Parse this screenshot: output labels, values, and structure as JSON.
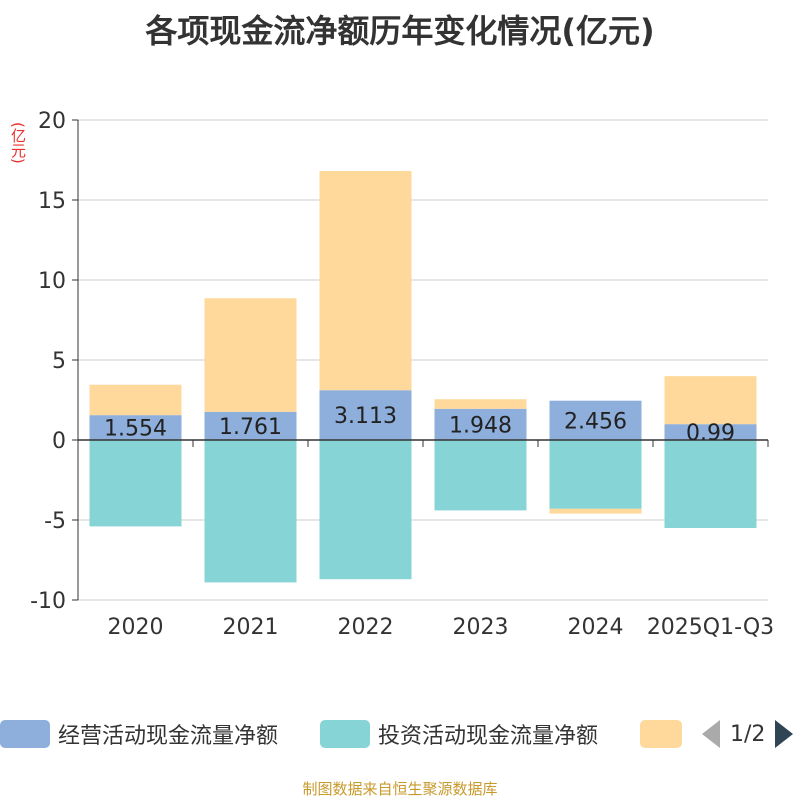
{
  "chart_data": {
    "type": "bar",
    "stacked": true,
    "title": "各项现金流净额历年变化情况(亿元)",
    "ylabel": "(亿元)",
    "xlabel": "",
    "ylim": [
      -10,
      20
    ],
    "yticks": [
      -10,
      -5,
      0,
      5,
      10,
      15,
      20
    ],
    "grid": true,
    "categories": [
      "2020",
      "2021",
      "2022",
      "2023",
      "2024",
      "2025Q1-Q3"
    ],
    "series": [
      {
        "name": "经营活动现金流量净额",
        "color": "#8eaedb",
        "values": [
          1.554,
          1.761,
          3.113,
          1.948,
          2.456,
          0.99
        ],
        "labels": [
          "1.554",
          "1.761",
          "3.113",
          "1.948",
          "2.456",
          "0.99"
        ]
      },
      {
        "name": "投资活动现金流量净额",
        "color": "#86d4d5",
        "values": [
          -5.4,
          -8.9,
          -8.7,
          -4.4,
          -4.3,
          -5.5
        ]
      },
      {
        "name": "",
        "color": "#fed99b",
        "values": [
          1.9,
          7.1,
          13.7,
          0.6,
          -0.3,
          3.0
        ]
      }
    ],
    "legend_position": "bottom"
  },
  "legend": {
    "pager": "1/2"
  },
  "footer": {
    "source": "制图数据来自恒生聚源数据库"
  }
}
